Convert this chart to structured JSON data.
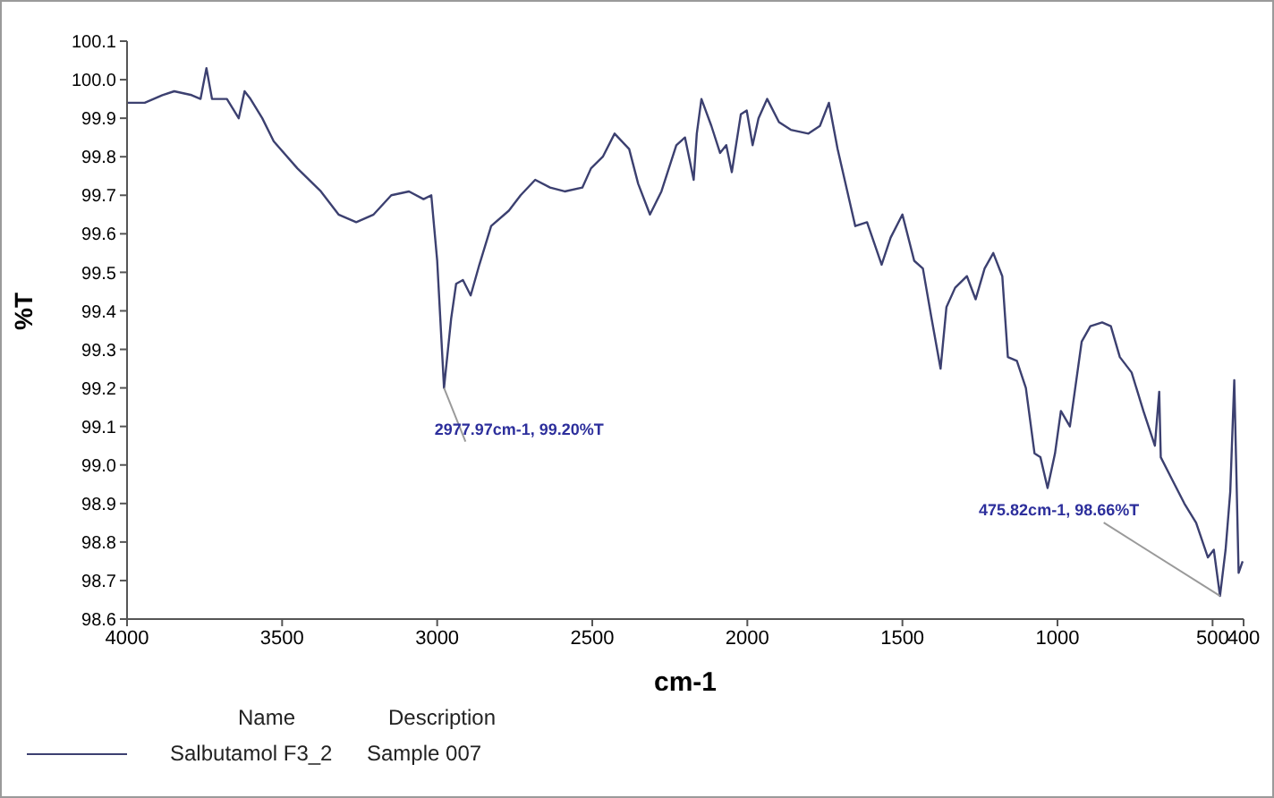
{
  "chart_data": {
    "type": "line",
    "xlabel": "cm-1",
    "ylabel": "%T",
    "legend_title": "Name",
    "xlim": [
      4000,
      400
    ],
    "xticks": [
      4000,
      3500,
      3000,
      2500,
      2000,
      1500,
      1000,
      500,
      400
    ],
    "ylim": [
      98.6,
      100.1
    ],
    "yticks": [
      98.6,
      98.7,
      98.8,
      98.9,
      {
        "value": 99.0,
        "label": "99.0"
      },
      99.1,
      99.2,
      99.3,
      99.4,
      99.5,
      99.6,
      99.7,
      99.8,
      99.9,
      {
        "value": 100.0,
        "label": "100.0"
      },
      100.1
    ],
    "legend": "bottom",
    "marker": "none",
    "line_style": "solid",
    "series": [
      {
        "name": "Salbutamol F3_2",
        "color": "#3c4070",
        "x": [
          4000,
          3990,
          3943,
          3886,
          3848,
          3792,
          3763,
          3744,
          3726,
          3678,
          3640,
          3621,
          3602,
          3564,
          3527,
          3451,
          3375,
          3318,
          3261,
          3205,
          3148,
          3091,
          3044,
          3019,
          3000,
          2978,
          2955,
          2939,
          2917,
          2892,
          2864,
          2826,
          2769,
          2731,
          2684,
          2636,
          2589,
          2532,
          2504,
          2466,
          2428,
          2381,
          2352,
          2314,
          2277,
          2229,
          2201,
          2173,
          2163,
          2148,
          2116,
          2088,
          2068,
          2050,
          2021,
          2002,
          1983,
          1964,
          1936,
          1898,
          1860,
          1803,
          1766,
          1737,
          1709,
          1652,
          1614,
          1567,
          1538,
          1500,
          1462,
          1434,
          1406,
          1377,
          1358,
          1330,
          1292,
          1264,
          1235,
          1207,
          1178,
          1160,
          1131,
          1102,
          1074,
          1055,
          1032,
          1008,
          989,
          960,
          922,
          894,
          856,
          828,
          799,
          761,
          723,
          686,
          672,
          667,
          629,
          591,
          553,
          515,
          496,
          476,
          458,
          443,
          430,
          416,
          403
        ],
        "values": [
          99.94,
          99.94,
          99.94,
          99.96,
          99.97,
          99.96,
          99.95,
          100.03,
          99.95,
          99.95,
          99.9,
          99.97,
          99.95,
          99.9,
          99.84,
          99.77,
          99.71,
          99.65,
          99.63,
          99.65,
          99.7,
          99.71,
          99.69,
          99.7,
          99.53,
          99.2,
          99.38,
          99.47,
          99.48,
          99.44,
          99.52,
          99.62,
          99.66,
          99.7,
          99.74,
          99.72,
          99.71,
          99.72,
          99.77,
          99.8,
          99.86,
          99.82,
          99.73,
          99.65,
          99.71,
          99.83,
          99.85,
          99.74,
          99.86,
          99.95,
          99.88,
          99.81,
          99.83,
          99.76,
          99.91,
          99.92,
          99.83,
          99.9,
          99.95,
          99.89,
          99.87,
          99.86,
          99.88,
          99.94,
          99.82,
          99.62,
          99.63,
          99.52,
          99.59,
          99.65,
          99.53,
          99.51,
          99.38,
          99.25,
          99.41,
          99.46,
          99.49,
          99.43,
          99.51,
          99.55,
          99.49,
          99.28,
          99.27,
          99.2,
          99.03,
          99.02,
          98.94,
          99.03,
          99.14,
          99.1,
          99.32,
          99.36,
          99.37,
          99.36,
          99.28,
          99.24,
          99.14,
          99.05,
          99.19,
          99.02,
          98.96,
          98.9,
          98.85,
          98.76,
          98.78,
          98.66,
          98.78,
          98.93,
          99.22,
          98.72,
          98.75
        ]
      }
    ],
    "annotations": [
      {
        "text": "2977.97cm-1, 99.20%T",
        "x": 2978,
        "y": 99.2
      },
      {
        "text": "475.82cm-1, 98.66%T",
        "x": 476,
        "y": 98.66
      },
      "Description",
      "Sample 007"
    ]
  }
}
